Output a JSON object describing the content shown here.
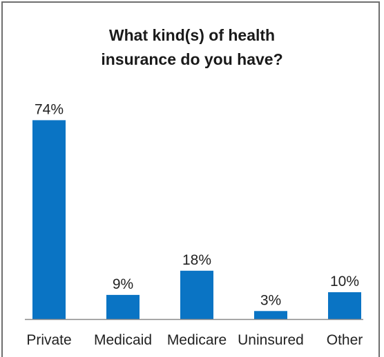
{
  "chart_data": {
    "type": "bar",
    "title_lines": [
      "What kind(s) of health",
      "insurance do you have?"
    ],
    "categories": [
      "Private",
      "Medicaid",
      "Medicare",
      "Uninsured",
      "Other"
    ],
    "values": [
      74,
      9,
      18,
      3,
      10
    ],
    "value_labels": [
      "74%",
      "9%",
      "18%",
      "3%",
      "10%"
    ],
    "xlabel": "",
    "ylabel": "",
    "ylim": [
      0,
      80
    ],
    "grid": false,
    "legend": "none"
  },
  "colors": {
    "bar": "#0a74c4",
    "axis": "#888888",
    "frame": "#6e6e6e"
  }
}
